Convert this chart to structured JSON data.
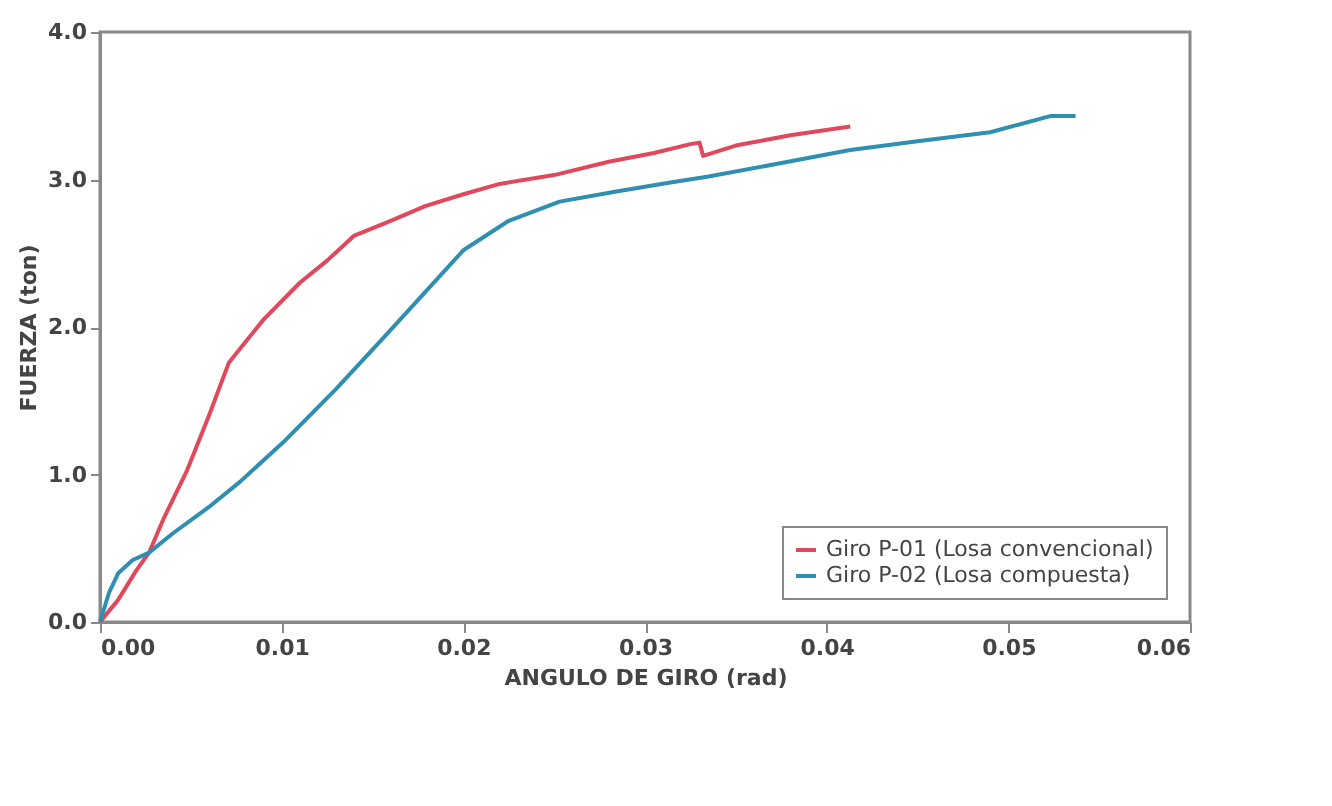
{
  "chart_data": {
    "type": "line",
    "xlabel": "ANGULO DE GIRO (rad)",
    "ylabel": "FUERZA (ton)",
    "xlim": [
      0,
      0.06
    ],
    "ylim": [
      0,
      4
    ],
    "xticks": [
      {
        "value": 0,
        "label": "0.00"
      },
      {
        "value": 0.01,
        "label": "0.01"
      },
      {
        "value": 0.02,
        "label": "0.02"
      },
      {
        "value": 0.03,
        "label": "0.03"
      },
      {
        "value": 0.04,
        "label": "0.04"
      },
      {
        "value": 0.05,
        "label": "0.05"
      },
      {
        "value": 0.06,
        "label": "0.06"
      }
    ],
    "yticks": [
      {
        "value": 0,
        "label": "0.0"
      },
      {
        "value": 1,
        "label": "1.0"
      },
      {
        "value": 2,
        "label": "2.0"
      },
      {
        "value": 3,
        "label": "3.0"
      },
      {
        "value": 4,
        "label": "4.0"
      }
    ],
    "grid": false,
    "legend": "bottom right",
    "marker": "none",
    "line_style": "solid",
    "series": [
      {
        "name": "Giro P-01 (Losa convencional)",
        "color": "#e0485c",
        "x": [
          0,
          0.001,
          0.002,
          0.0027,
          0.0035,
          0.0048,
          0.006,
          0.0071,
          0.009,
          0.011,
          0.0125,
          0.014,
          0.016,
          0.0179,
          0.02,
          0.022,
          0.025,
          0.028,
          0.0305,
          0.0325,
          0.033,
          0.0332,
          0.035,
          0.038,
          0.0413
        ],
        "values": [
          0,
          0.15,
          0.35,
          0.47,
          0.7,
          1.03,
          1.4,
          1.76,
          2.05,
          2.3,
          2.45,
          2.62,
          2.72,
          2.82,
          2.9,
          2.97,
          3.03,
          3.12,
          3.18,
          3.24,
          3.25,
          3.16,
          3.23,
          3.3,
          3.36
        ]
      },
      {
        "name": "Giro P-02 (Losa compuesta)",
        "color": "#2e8fb0",
        "x": [
          0,
          0.0005,
          0.001,
          0.0018,
          0.0027,
          0.004,
          0.006,
          0.0077,
          0.0101,
          0.013,
          0.0157,
          0.018,
          0.02,
          0.0225,
          0.0253,
          0.0285,
          0.0314,
          0.0335,
          0.037,
          0.0413,
          0.045,
          0.049,
          0.0523,
          0.0537
        ],
        "values": [
          0,
          0.2,
          0.33,
          0.42,
          0.47,
          0.6,
          0.78,
          0.95,
          1.22,
          1.58,
          1.94,
          2.25,
          2.52,
          2.72,
          2.85,
          2.92,
          2.98,
          3.02,
          3.1,
          3.2,
          3.26,
          3.32,
          3.43,
          3.43
        ]
      }
    ]
  }
}
